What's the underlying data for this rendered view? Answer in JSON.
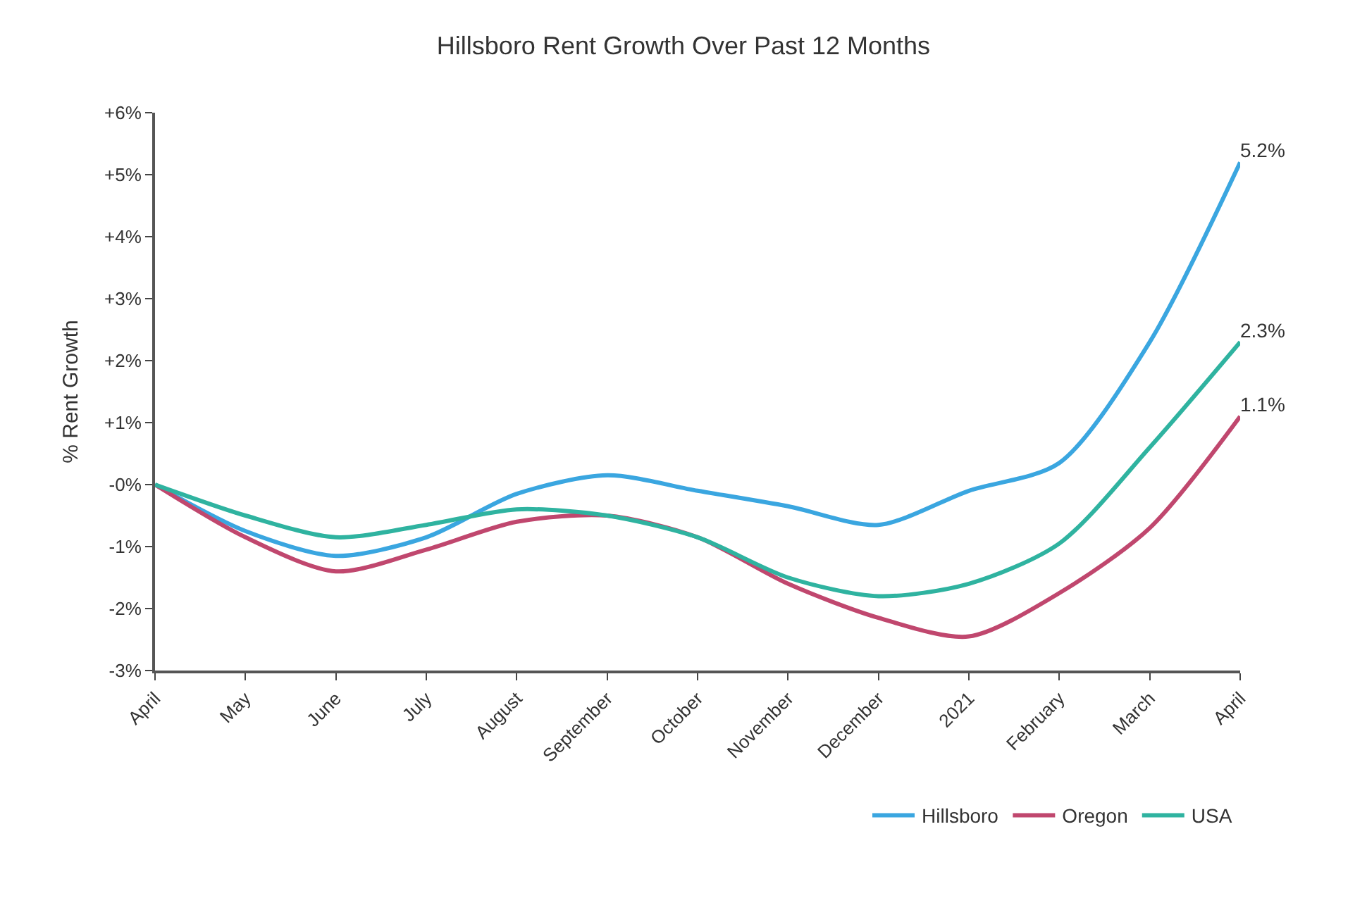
{
  "chart_data": {
    "type": "line",
    "title": "Hillsboro Rent Growth Over Past 12 Months",
    "ylabel": "% Rent Growth",
    "categories": [
      "April",
      "May",
      "June",
      "July",
      "August",
      "September",
      "October",
      "November",
      "December",
      "2021",
      "February",
      "March",
      "April"
    ],
    "series": [
      {
        "name": "Hillsboro",
        "color": "#3aa6e0",
        "values": [
          0,
          -0.75,
          -1.15,
          -0.85,
          -0.15,
          0.15,
          -0.1,
          -0.35,
          -0.65,
          -0.1,
          0.35,
          2.3,
          5.2
        ],
        "value_labels": [
          null,
          null,
          null,
          null,
          null,
          null,
          null,
          null,
          null,
          null,
          null,
          null,
          "5.2%"
        ]
      },
      {
        "name": "Oregon",
        "color": "#c0476e",
        "values": [
          0,
          -0.85,
          -1.4,
          -1.05,
          -0.6,
          -0.5,
          -0.85,
          -1.6,
          -2.15,
          -2.45,
          -1.75,
          -0.7,
          1.1
        ],
        "value_labels": [
          null,
          null,
          null,
          null,
          null,
          null,
          null,
          null,
          null,
          null,
          null,
          null,
          "1.1%"
        ]
      },
      {
        "name": "USA",
        "color": "#2fb3a0",
        "values": [
          0,
          -0.5,
          -0.85,
          -0.65,
          -0.4,
          -0.5,
          -0.85,
          -1.5,
          -1.8,
          -1.6,
          -0.95,
          0.6,
          2.3
        ],
        "value_labels": [
          null,
          null,
          null,
          null,
          null,
          null,
          null,
          null,
          null,
          null,
          null,
          null,
          "2.3%"
        ]
      }
    ],
    "ylim": [
      -3,
      6
    ],
    "yticks": [
      {
        "value": -3,
        "label": "-3%"
      },
      {
        "value": -2,
        "label": "-2%"
      },
      {
        "value": -1,
        "label": "-1%"
      },
      {
        "value": 0,
        "label": "-0%"
      },
      {
        "value": 1,
        "label": "+1%"
      },
      {
        "value": 2,
        "label": "+2%"
      },
      {
        "value": 3,
        "label": "+3%"
      },
      {
        "value": 4,
        "label": "+4%"
      },
      {
        "value": 5,
        "label": "+5%"
      },
      {
        "value": 6,
        "label": "+6%"
      }
    ],
    "legend": "bottom right",
    "marker": "none",
    "line_style": "solid"
  }
}
